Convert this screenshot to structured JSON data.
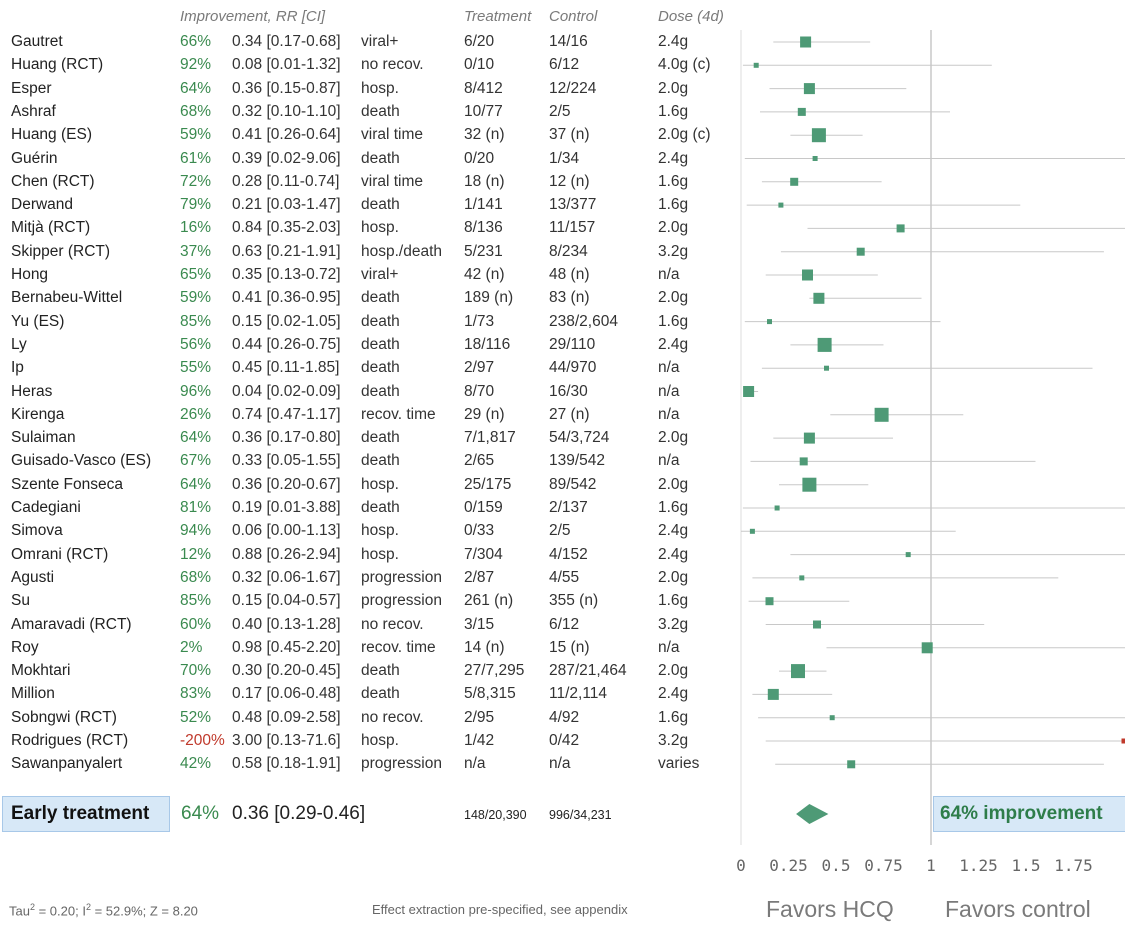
{
  "headers": {
    "improvement": "Improvement, RR [CI]",
    "treatment": "Treatment",
    "control": "Control",
    "dose": "Dose (4d)"
  },
  "summary": {
    "label": "Early treatment",
    "improvement": "64%",
    "rr": "0.36 [0.29-0.46]",
    "treatment": "148/20,390",
    "control": "996/34,231",
    "badge": "64% improvement"
  },
  "footer": {
    "stats_parts": [
      "Tau",
      "2",
      " = 0.20; I",
      "2",
      " = 52.9%; Z = 8.20"
    ],
    "note": "Effect extraction pre-specified, see appendix",
    "favors_left": "Favors HCQ",
    "favors_right": "Favors control"
  },
  "colors": {
    "marker": "#4e9a76",
    "ci_line": "#c8c8c8",
    "positive": "#3a8a4f",
    "negative": "#c0392b",
    "box_bg": "#d7e8f7"
  },
  "chart_data": {
    "type": "forest",
    "xlim": [
      0,
      2
    ],
    "x_ticks": [
      "0",
      "0.25",
      "0.5",
      "0.75",
      "1",
      "1.25",
      "1.5",
      "1.75"
    ],
    "reference_line": 1,
    "summary_estimate": {
      "rr": 0.36,
      "ci": [
        0.29,
        0.46
      ]
    },
    "studies": [
      {
        "name": "Gautret",
        "improvement": "66%",
        "rr_text": "0.34 [0.17-0.68]",
        "outcome": "viral+",
        "treatment": "6/20",
        "control": "14/16",
        "dose": "2.4g",
        "rr": 0.34,
        "lo": 0.17,
        "hi": 0.68,
        "weight": 3
      },
      {
        "name": "Huang (RCT)",
        "improvement": "92%",
        "rr_text": "0.08 [0.01-1.32]",
        "outcome": "no recov.",
        "treatment": "0/10",
        "control": "6/12",
        "dose": "4.0g (c)",
        "rr": 0.08,
        "lo": 0.01,
        "hi": 1.32,
        "weight": 1
      },
      {
        "name": "Esper",
        "improvement": "64%",
        "rr_text": "0.36 [0.15-0.87]",
        "outcome": "hosp.",
        "treatment": "8/412",
        "control": "12/224",
        "dose": "2.0g",
        "rr": 0.36,
        "lo": 0.15,
        "hi": 0.87,
        "weight": 3
      },
      {
        "name": "Ashraf",
        "improvement": "68%",
        "rr_text": "0.32 [0.10-1.10]",
        "outcome": "death",
        "treatment": "10/77",
        "control": "2/5",
        "dose": "1.6g",
        "rr": 0.32,
        "lo": 0.1,
        "hi": 1.1,
        "weight": 2
      },
      {
        "name": "Huang (ES)",
        "improvement": "59%",
        "rr_text": "0.41 [0.26-0.64]",
        "outcome": "viral time",
        "treatment": "32 (n)",
        "control": "37 (n)",
        "dose": "2.0g (c)",
        "rr": 0.41,
        "lo": 0.26,
        "hi": 0.64,
        "weight": 4
      },
      {
        "name": "Guérin",
        "improvement": "61%",
        "rr_text": "0.39 [0.02-9.06]",
        "outcome": "death",
        "treatment": "0/20",
        "control": "1/34",
        "dose": "2.4g",
        "rr": 0.39,
        "lo": 0.02,
        "hi": 9.06,
        "weight": 1
      },
      {
        "name": "Chen (RCT)",
        "improvement": "72%",
        "rr_text": "0.28 [0.11-0.74]",
        "outcome": "viral time",
        "treatment": "18 (n)",
        "control": "12 (n)",
        "dose": "1.6g",
        "rr": 0.28,
        "lo": 0.11,
        "hi": 0.74,
        "weight": 2
      },
      {
        "name": "Derwand",
        "improvement": "79%",
        "rr_text": "0.21 [0.03-1.47]",
        "outcome": "death",
        "treatment": "1/141",
        "control": "13/377",
        "dose": "1.6g",
        "rr": 0.21,
        "lo": 0.03,
        "hi": 1.47,
        "weight": 1
      },
      {
        "name": "Mitjà (RCT)",
        "improvement": "16%",
        "rr_text": "0.84 [0.35-2.03]",
        "outcome": "hosp.",
        "treatment": "8/136",
        "control": "11/157",
        "dose": "2.0g",
        "rr": 0.84,
        "lo": 0.35,
        "hi": 2.03,
        "weight": 2
      },
      {
        "name": "Skipper (RCT)",
        "improvement": "37%",
        "rr_text": "0.63 [0.21-1.91]",
        "outcome": "hosp./death",
        "treatment": "5/231",
        "control": "8/234",
        "dose": "3.2g",
        "rr": 0.63,
        "lo": 0.21,
        "hi": 1.91,
        "weight": 2
      },
      {
        "name": "Hong",
        "improvement": "65%",
        "rr_text": "0.35 [0.13-0.72]",
        "outcome": "viral+",
        "treatment": "42 (n)",
        "control": "48 (n)",
        "dose": "n/a",
        "rr": 0.35,
        "lo": 0.13,
        "hi": 0.72,
        "weight": 3
      },
      {
        "name": "Bernabeu-Wittel",
        "improvement": "59%",
        "rr_text": "0.41 [0.36-0.95]",
        "outcome": "death",
        "treatment": "189 (n)",
        "control": "83 (n)",
        "dose": "2.0g",
        "rr": 0.41,
        "lo": 0.36,
        "hi": 0.95,
        "weight": 3
      },
      {
        "name": "Yu (ES)",
        "improvement": "85%",
        "rr_text": "0.15 [0.02-1.05]",
        "outcome": "death",
        "treatment": "1/73",
        "control": "238/2,604",
        "dose": "1.6g",
        "rr": 0.15,
        "lo": 0.02,
        "hi": 1.05,
        "weight": 1
      },
      {
        "name": "Ly",
        "improvement": "56%",
        "rr_text": "0.44 [0.26-0.75]",
        "outcome": "death",
        "treatment": "18/116",
        "control": "29/110",
        "dose": "2.4g",
        "rr": 0.44,
        "lo": 0.26,
        "hi": 0.75,
        "weight": 4
      },
      {
        "name": "Ip",
        "improvement": "55%",
        "rr_text": "0.45 [0.11-1.85]",
        "outcome": "death",
        "treatment": "2/97",
        "control": "44/970",
        "dose": "n/a",
        "rr": 0.45,
        "lo": 0.11,
        "hi": 1.85,
        "weight": 1
      },
      {
        "name": "Heras",
        "improvement": "96%",
        "rr_text": "0.04 [0.02-0.09]",
        "outcome": "death",
        "treatment": "8/70",
        "control": "16/30",
        "dose": "n/a",
        "rr": 0.04,
        "lo": 0.02,
        "hi": 0.09,
        "weight": 3
      },
      {
        "name": "Kirenga",
        "improvement": "26%",
        "rr_text": "0.74 [0.47-1.17]",
        "outcome": "recov. time",
        "treatment": "29 (n)",
        "control": "27 (n)",
        "dose": "n/a",
        "rr": 0.74,
        "lo": 0.47,
        "hi": 1.17,
        "weight": 4
      },
      {
        "name": "Sulaiman",
        "improvement": "64%",
        "rr_text": "0.36 [0.17-0.80]",
        "outcome": "death",
        "treatment": "7/1,817",
        "control": "54/3,724",
        "dose": "2.0g",
        "rr": 0.36,
        "lo": 0.17,
        "hi": 0.8,
        "weight": 3
      },
      {
        "name": "Guisado-Vasco (ES)",
        "improvement": "67%",
        "rr_text": "0.33 [0.05-1.55]",
        "outcome": "death",
        "treatment": "2/65",
        "control": "139/542",
        "dose": "n/a",
        "rr": 0.33,
        "lo": 0.05,
        "hi": 1.55,
        "weight": 2
      },
      {
        "name": "Szente Fonseca",
        "improvement": "64%",
        "rr_text": "0.36 [0.20-0.67]",
        "outcome": "hosp.",
        "treatment": "25/175",
        "control": "89/542",
        "dose": "2.0g",
        "rr": 0.36,
        "lo": 0.2,
        "hi": 0.67,
        "weight": 4
      },
      {
        "name": "Cadegiani",
        "improvement": "81%",
        "rr_text": "0.19 [0.01-3.88]",
        "outcome": "death",
        "treatment": "0/159",
        "control": "2/137",
        "dose": "1.6g",
        "rr": 0.19,
        "lo": 0.01,
        "hi": 3.88,
        "weight": 1
      },
      {
        "name": "Simova",
        "improvement": "94%",
        "rr_text": "0.06 [0.00-1.13]",
        "outcome": "hosp.",
        "treatment": "0/33",
        "control": "2/5",
        "dose": "2.4g",
        "rr": 0.06,
        "lo": 0.0,
        "hi": 1.13,
        "weight": 1
      },
      {
        "name": "Omrani (RCT)",
        "improvement": "12%",
        "rr_text": "0.88 [0.26-2.94]",
        "outcome": "hosp.",
        "treatment": "7/304",
        "control": "4/152",
        "dose": "2.4g",
        "rr": 0.88,
        "lo": 0.26,
        "hi": 2.94,
        "weight": 1
      },
      {
        "name": "Agusti",
        "improvement": "68%",
        "rr_text": "0.32 [0.06-1.67]",
        "outcome": "progression",
        "treatment": "2/87",
        "control": "4/55",
        "dose": "2.0g",
        "rr": 0.32,
        "lo": 0.06,
        "hi": 1.67,
        "weight": 1
      },
      {
        "name": "Su",
        "improvement": "85%",
        "rr_text": "0.15 [0.04-0.57]",
        "outcome": "progression",
        "treatment": "261 (n)",
        "control": "355 (n)",
        "dose": "1.6g",
        "rr": 0.15,
        "lo": 0.04,
        "hi": 0.57,
        "weight": 2
      },
      {
        "name": "Amaravadi (RCT)",
        "improvement": "60%",
        "rr_text": "0.40 [0.13-1.28]",
        "outcome": "no recov.",
        "treatment": "3/15",
        "control": "6/12",
        "dose": "3.2g",
        "rr": 0.4,
        "lo": 0.13,
        "hi": 1.28,
        "weight": 2
      },
      {
        "name": "Roy",
        "improvement": "2%",
        "rr_text": "0.98 [0.45-2.20]",
        "outcome": "recov. time",
        "treatment": "14 (n)",
        "control": "15 (n)",
        "dose": "n/a",
        "rr": 0.98,
        "lo": 0.45,
        "hi": 2.2,
        "weight": 3
      },
      {
        "name": "Mokhtari",
        "improvement": "70%",
        "rr_text": "0.30 [0.20-0.45]",
        "outcome": "death",
        "treatment": "27/7,295",
        "control": "287/21,464",
        "dose": "2.0g",
        "rr": 0.3,
        "lo": 0.2,
        "hi": 0.45,
        "weight": 4
      },
      {
        "name": "Million",
        "improvement": "83%",
        "rr_text": "0.17 [0.06-0.48]",
        "outcome": "death",
        "treatment": "5/8,315",
        "control": "11/2,114",
        "dose": "2.4g",
        "rr": 0.17,
        "lo": 0.06,
        "hi": 0.48,
        "weight": 3
      },
      {
        "name": "Sobngwi (RCT)",
        "improvement": "52%",
        "rr_text": "0.48 [0.09-2.58]",
        "outcome": "no recov.",
        "treatment": "2/95",
        "control": "4/92",
        "dose": "1.6g",
        "rr": 0.48,
        "lo": 0.09,
        "hi": 2.58,
        "weight": 1
      },
      {
        "name": "Rodrigues (RCT)",
        "improvement": "-200%",
        "rr_text": "3.00 [0.13-71.6]",
        "outcome": "hosp.",
        "treatment": "1/42",
        "control": "0/42",
        "dose": "3.2g",
        "rr": 3.0,
        "lo": 0.13,
        "hi": 71.6,
        "weight": 1
      },
      {
        "name": "Sawanpanyalert",
        "improvement": "42%",
        "rr_text": "0.58 [0.18-1.91]",
        "outcome": "progression",
        "treatment": "n/a",
        "control": "n/a",
        "dose": "varies",
        "rr": 0.58,
        "lo": 0.18,
        "hi": 1.91,
        "weight": 2
      }
    ]
  }
}
